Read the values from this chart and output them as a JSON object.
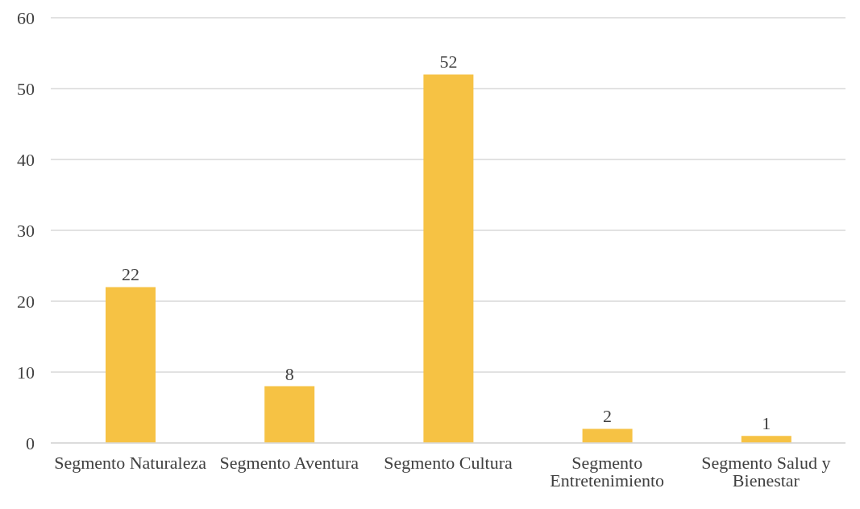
{
  "chart_data": {
    "type": "bar",
    "categories": [
      "Segmento Naturaleza",
      "Segmento Aventura",
      "Segmento Cultura",
      "Segmento Entretenimiento",
      "Segmento Salud y Bienestar"
    ],
    "values": [
      22,
      8,
      52,
      2,
      1
    ],
    "color": "#f6c244",
    "ylim": [
      0,
      60
    ],
    "yticks": [
      0,
      10,
      20,
      30,
      40,
      50,
      60
    ],
    "grid": "y",
    "data_labels": true
  }
}
